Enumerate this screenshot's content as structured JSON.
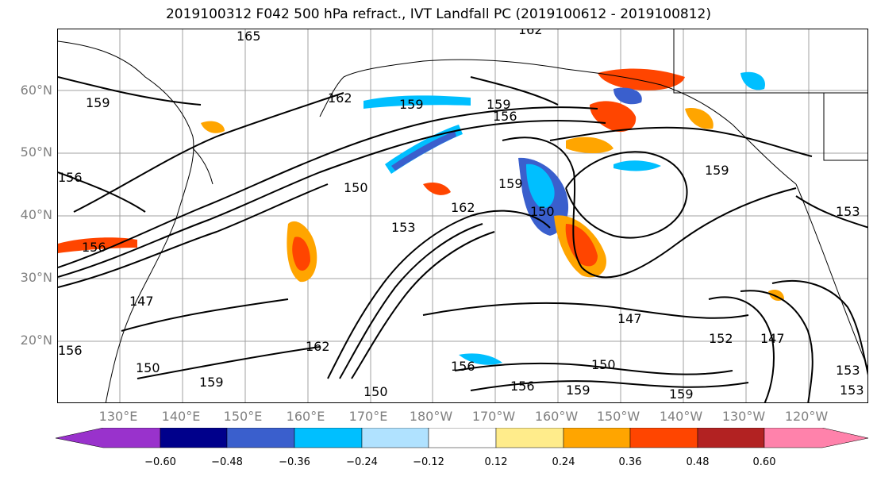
{
  "title": "2019100312 F042 500 hPa refract., IVT Landfall PC (2019100612 - 2019100812)",
  "lat_labels": [
    "60°N",
    "50°N",
    "40°N",
    "30°N",
    "20°N"
  ],
  "lon_labels": [
    "130°E",
    "140°E",
    "150°E",
    "160°E",
    "170°E",
    "180°W",
    "170°W",
    "160°W",
    "150°W",
    "140°W",
    "130°W",
    "120°W"
  ],
  "contour_labels": [
    "165",
    "162",
    "159",
    "162",
    "159",
    "156",
    "159",
    "156",
    "150",
    "153",
    "162",
    "159",
    "150",
    "159",
    "156",
    "147",
    "147",
    "162",
    "159",
    "150",
    "150",
    "156",
    "156",
    "159",
    "150",
    "159",
    "147",
    "153",
    "152",
    "153",
    "153",
    "156"
  ],
  "colorbar": {
    "ticks": [
      "−0.60",
      "−0.48",
      "−0.36",
      "−0.24",
      "−0.12",
      "0.12",
      "0.24",
      "0.36",
      "0.48",
      "0.60"
    ],
    "colors": [
      "#9932cc",
      "#00008b",
      "#3a5fcd",
      "#00bfff",
      "#b0e2ff",
      "#ffffff",
      "#ffec8b",
      "#ffa500",
      "#ff4500",
      "#b22222",
      "#ff82ab"
    ]
  }
}
